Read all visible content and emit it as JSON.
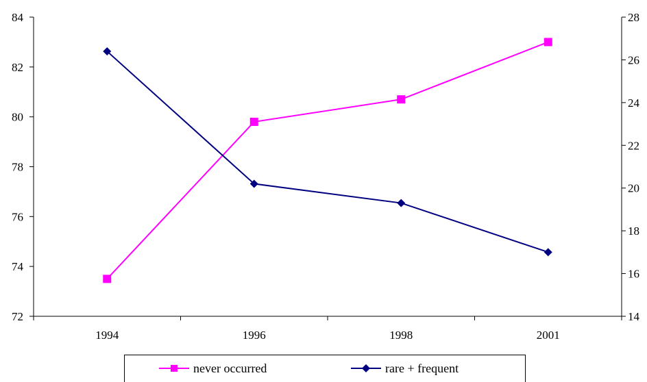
{
  "chart_data": {
    "type": "line",
    "categories": [
      "1994",
      "1996",
      "1998",
      "2001"
    ],
    "series": [
      {
        "name": "never occurred",
        "axis": "left",
        "color": "#FF00FF",
        "marker": "square",
        "values": [
          73.5,
          79.8,
          80.7,
          83.0
        ]
      },
      {
        "name": "rare + frequent",
        "axis": "right",
        "color": "#000080",
        "marker": "diamond",
        "values": [
          26.4,
          20.2,
          19.3,
          17.0
        ]
      }
    ],
    "y_left": {
      "min": 72,
      "max": 84,
      "ticks": [
        "72",
        "74",
        "76",
        "78",
        "80",
        "82",
        "84"
      ]
    },
    "y_right": {
      "min": 14,
      "max": 28,
      "ticks": [
        "14",
        "16",
        "18",
        "20",
        "22",
        "24",
        "26",
        "28"
      ]
    },
    "legend_position": "bottom",
    "grid": false
  }
}
